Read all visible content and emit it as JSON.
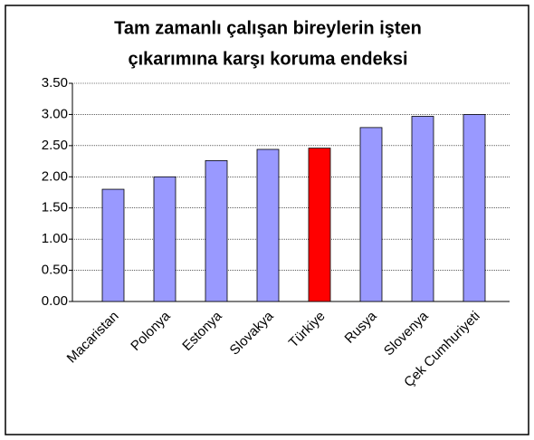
{
  "chart_data": {
    "type": "bar",
    "title": [
      "Tam zamanlı çalışan bireylerin işten",
      "çıkarımına karşı koruma endeksi"
    ],
    "categories": [
      "Macaristan",
      "Polonya",
      "Estonya",
      "Slovakya",
      "Türkiye",
      "Rusya",
      "Slovenya",
      "Çek Cumhuriyeti"
    ],
    "values": [
      1.8,
      2.0,
      2.26,
      2.44,
      2.46,
      2.79,
      2.97,
      3.0
    ],
    "colors": [
      "#9999ff",
      "#9999ff",
      "#9999ff",
      "#9999ff",
      "#ff0000",
      "#9999ff",
      "#9999ff",
      "#9999ff"
    ],
    "ylim": [
      0,
      3.5
    ],
    "yticks": [
      {
        "value": 0,
        "label": "0.00"
      },
      {
        "value": 0.5,
        "label": "0.50"
      },
      {
        "value": 1,
        "label": "1.00"
      },
      {
        "value": 1.5,
        "label": "1.50"
      },
      {
        "value": 2,
        "label": "2.00"
      },
      {
        "value": 2.5,
        "label": "2.50"
      },
      {
        "value": 3,
        "label": "3.00"
      },
      {
        "value": 3.5,
        "label": "3.50"
      }
    ],
    "grid": true
  }
}
